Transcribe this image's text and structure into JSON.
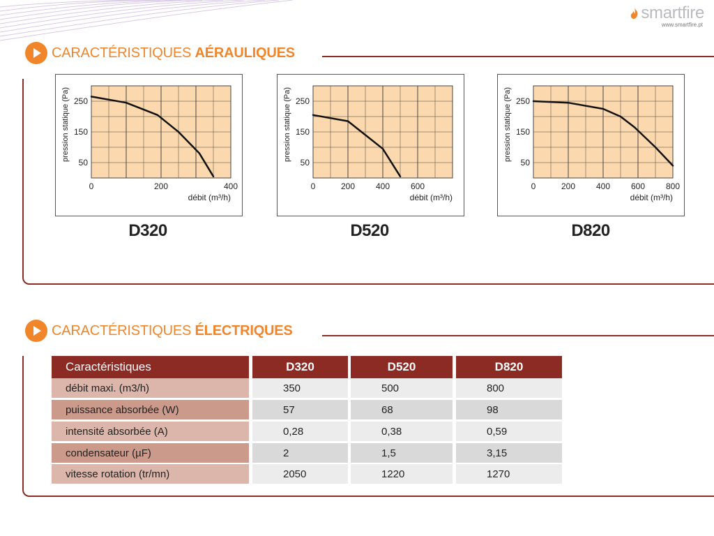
{
  "brand": {
    "name": "smartfire",
    "url": "www.smartfire.pt"
  },
  "sections": {
    "aeraulic": {
      "title_prefix": "CARACTÉRISTIQUES ",
      "title_bold": "AÉRAULIQUES"
    },
    "electric": {
      "title_prefix": "CARACTÉRISTIQUES ",
      "title_bold": "ÉLECTRIQUES"
    }
  },
  "colors": {
    "accent_orange": "#f0852a",
    "brand_red": "#8c2a24",
    "grid_fill": "#fbd8ad",
    "curve": "#111111"
  },
  "chart_data": [
    {
      "type": "line",
      "model": "D320",
      "ylabel": "pression statique (Pa)",
      "xlabel": "débit (m³/h)",
      "x_ticks": [
        "0",
        "200",
        "400"
      ],
      "y_ticks": [
        "250",
        "150",
        "50"
      ],
      "xlim": [
        0,
        400
      ],
      "ylim": [
        0,
        300
      ],
      "grid": true,
      "series": [
        {
          "x": [
            0,
            100,
            190,
            250,
            310,
            350
          ],
          "y": [
            265,
            245,
            205,
            150,
            80,
            5
          ]
        }
      ]
    },
    {
      "type": "line",
      "model": "D520",
      "ylabel": "pression statique (Pa)",
      "xlabel": "débit (m³/h)",
      "x_ticks": [
        "0",
        "200",
        "400",
        "600"
      ],
      "y_ticks": [
        "250",
        "150",
        "50"
      ],
      "xlim": [
        0,
        800
      ],
      "ylim": [
        0,
        300
      ],
      "grid": true,
      "series": [
        {
          "x": [
            0,
            200,
            300,
            400,
            500
          ],
          "y": [
            205,
            185,
            140,
            95,
            5
          ]
        }
      ]
    },
    {
      "type": "line",
      "model": "D820",
      "ylabel": "pression statique (Pa)",
      "xlabel": "débit (m³/h)",
      "x_ticks": [
        "0",
        "200",
        "400",
        "600",
        "800"
      ],
      "y_ticks": [
        "250",
        "150",
        "50"
      ],
      "xlim": [
        0,
        800
      ],
      "ylim": [
        0,
        300
      ],
      "grid": true,
      "series": [
        {
          "x": [
            0,
            200,
            400,
            500,
            580,
            700,
            800
          ],
          "y": [
            250,
            245,
            225,
            200,
            165,
            100,
            40
          ]
        }
      ]
    }
  ],
  "table": {
    "header": {
      "first": "Caractéristiques",
      "models": [
        "D320",
        "D520",
        "D820"
      ]
    },
    "rows": [
      {
        "label": "débit maxi. (m3/h)",
        "values": [
          "350",
          "500",
          "800"
        ]
      },
      {
        "label": "puissance absorbée (W)",
        "values": [
          "57",
          "68",
          "98"
        ]
      },
      {
        "label": "intensité absorbée (A)",
        "values": [
          "0,28",
          "0,38",
          "0,59"
        ]
      },
      {
        "label": "condensateur (µF)",
        "values": [
          "2",
          "1,5",
          "3,15"
        ]
      },
      {
        "label": "vitesse rotation (tr/mn)",
        "values": [
          "2050",
          "1220",
          "1270"
        ]
      }
    ]
  }
}
